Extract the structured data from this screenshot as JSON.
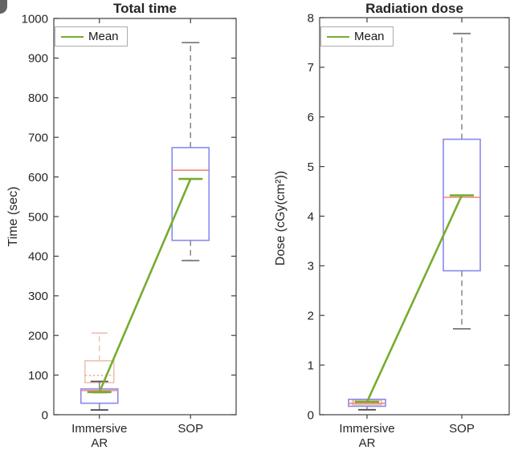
{
  "colors": {
    "mean_green": "#77ac30",
    "box_blue": "#8989ef",
    "median_red": "#f2867b",
    "box_pink": "#eec2b0",
    "median_pink": "#e9b6a3",
    "whisker_gray": "#7d7d7d",
    "cap_dark": "#4f4f4f",
    "axis": "#3f3f3f",
    "text": "#262626",
    "background": "#ffffff"
  },
  "chart_data": [
    {
      "type": "boxplot",
      "title": "Total time",
      "ylabel": "Time (sec)",
      "ylim": [
        0,
        1000
      ],
      "ytick_step": 100,
      "categories": [
        [
          "Immersive",
          "AR"
        ],
        [
          "SOP"
        ]
      ],
      "legend": {
        "label": "Mean",
        "position": "top-left"
      },
      "series": [
        {
          "group": "Immersive AR",
          "style": "pink",
          "category": 1,
          "whisker_low": 55,
          "q1": 81,
          "median": 99,
          "q3": 136,
          "whisker_high": 206,
          "whisker_dash": true
        },
        {
          "group": "Immersive AR",
          "style": "blue",
          "category": 1,
          "whisker_low": 12,
          "q1": 29,
          "median": 61,
          "q3": 65,
          "whisker_high": 84,
          "whisker_dash": false
        },
        {
          "group": "SOP",
          "style": "blue",
          "category": 2,
          "whisker_low": 389,
          "q1": 440,
          "median": 617,
          "q3": 674,
          "whisker_high": 939,
          "whisker_dash": true
        }
      ],
      "mean_series": {
        "name": "Mean",
        "values": [
          57,
          595
        ]
      }
    },
    {
      "type": "boxplot",
      "title": "Radiation dose",
      "ylabel": "Dose (cGy(cm²))",
      "ylim": [
        0,
        8
      ],
      "ytick_step": 1,
      "categories": [
        [
          "Immersive",
          "AR"
        ],
        [
          "SOP"
        ]
      ],
      "legend": {
        "label": "Mean",
        "position": "top-left"
      },
      "series": [
        {
          "group": "Immersive AR",
          "style": "pink",
          "category": 1,
          "whisker_low": null,
          "q1": 0.2,
          "median": 0.26,
          "q3": 0.29,
          "whisker_high": null,
          "whisker_dash": true
        },
        {
          "group": "Immersive AR",
          "style": "blue",
          "category": 1,
          "whisker_low": 0.1,
          "q1": 0.17,
          "median": 0.23,
          "q3": 0.31,
          "whisker_high": null,
          "whisker_dash": false
        },
        {
          "group": "SOP",
          "style": "blue",
          "category": 2,
          "whisker_low": 1.73,
          "q1": 2.9,
          "median": 4.38,
          "q3": 5.55,
          "whisker_high": 7.68,
          "whisker_dash": true
        }
      ],
      "mean_series": {
        "name": "Mean",
        "values": [
          0.26,
          4.42
        ]
      }
    }
  ]
}
